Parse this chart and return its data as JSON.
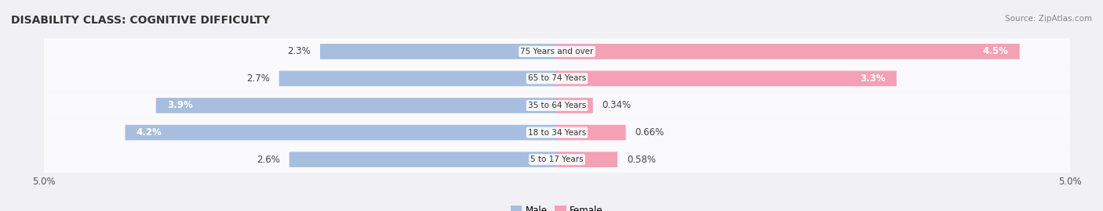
{
  "title": "DISABILITY CLASS: COGNITIVE DIFFICULTY",
  "source": "Source: ZipAtlas.com",
  "categories": [
    "5 to 17 Years",
    "18 to 34 Years",
    "35 to 64 Years",
    "65 to 74 Years",
    "75 Years and over"
  ],
  "male_values": [
    2.6,
    4.2,
    3.9,
    2.7,
    2.3
  ],
  "female_values": [
    0.58,
    0.66,
    0.34,
    3.3,
    4.5
  ],
  "male_color": "#a8bede",
  "female_color": "#f4a0b5",
  "male_label": "Male",
  "female_label": "Female",
  "axis_max": 5.0,
  "bg_color": "#f0f0f5",
  "row_bg_color": "#e8e8f0",
  "bar_height": 0.55,
  "title_fontsize": 10,
  "label_fontsize": 8.5,
  "tick_fontsize": 8.5
}
